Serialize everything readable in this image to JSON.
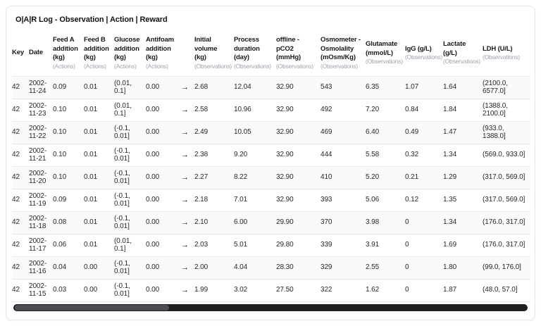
{
  "title": "O|A|R Log - Observation | Action | Reward",
  "colors": {
    "row_stripe": "#f9fafb",
    "table_border": "#e5e7eb",
    "header_text": "#18181b",
    "subheader_text": "#9ca3af",
    "body_text": "#27272a",
    "scrollbar_track": "#1f1f22",
    "scrollbar_thumb": "#4d4d52"
  },
  "table": {
    "arrow_glyph": "→",
    "columns": [
      {
        "label": "Key",
        "sub": ""
      },
      {
        "label": "Date",
        "sub": ""
      },
      {
        "label": "Feed A addition (kg)",
        "sub": "(Actions)"
      },
      {
        "label": "Feed B addition (kg)",
        "sub": "(Actions)"
      },
      {
        "label": "Glucose addition (kg)",
        "sub": "(Actions)"
      },
      {
        "label": "Antifoam addition (kg)",
        "sub": "(Actions)"
      },
      {
        "label": "",
        "sub": ""
      },
      {
        "label": "Initial volume (kg)",
        "sub": "(Observations)"
      },
      {
        "label": "Process duration (day)",
        "sub": "(Observations)"
      },
      {
        "label": "offline - pCO2 (mmHg)",
        "sub": "(Observations)"
      },
      {
        "label": "Osmometer - Osmolality (mOsm/Kg)",
        "sub": "(Observations)"
      },
      {
        "label": "Glutamate (mmol/L)",
        "sub": "(Observations)"
      },
      {
        "label": "IgG (g/L)",
        "sub": "(Observations)"
      },
      {
        "label": "Lactate (g/L)",
        "sub": "(Observations)"
      },
      {
        "label": "LDH (U/L)",
        "sub": "(Observations)"
      }
    ],
    "rows": [
      {
        "key": "42",
        "date": "2002-11-24",
        "feed_a": "0.09",
        "feed_b": "0.01",
        "glucose": "(0.01, 0.1]",
        "antifoam": "0.00",
        "initial_volume": "2.68",
        "process_duration": "12.04",
        "pco2": "32.90",
        "osmolality": "543",
        "glutamate": "6.35",
        "igg": "1.07",
        "lactate": "1.64",
        "ldh": "(2100.0, 6577.0]"
      },
      {
        "key": "42",
        "date": "2002-11-23",
        "feed_a": "0.10",
        "feed_b": "0.01",
        "glucose": "(0.01, 0.1]",
        "antifoam": "0.00",
        "initial_volume": "2.58",
        "process_duration": "10.96",
        "pco2": "32.90",
        "osmolality": "492",
        "glutamate": "7.20",
        "igg": "0.84",
        "lactate": "1.84",
        "ldh": "(1388.0, 2100.0]"
      },
      {
        "key": "42",
        "date": "2002-11-22",
        "feed_a": "0.10",
        "feed_b": "0.01",
        "glucose": "(-0.1, 0.01]",
        "antifoam": "0.00",
        "initial_volume": "2.49",
        "process_duration": "10.05",
        "pco2": "32.90",
        "osmolality": "469",
        "glutamate": "6.40",
        "igg": "0.49",
        "lactate": "1.47",
        "ldh": "(933.0, 1388.0]"
      },
      {
        "key": "42",
        "date": "2002-11-21",
        "feed_a": "0.10",
        "feed_b": "0.01",
        "glucose": "(-0.1, 0.01]",
        "antifoam": "0.00",
        "initial_volume": "2.38",
        "process_duration": "9.20",
        "pco2": "32.90",
        "osmolality": "444",
        "glutamate": "5.58",
        "igg": "0.32",
        "lactate": "1.34",
        "ldh": "(569.0, 933.0]"
      },
      {
        "key": "42",
        "date": "2002-11-20",
        "feed_a": "0.10",
        "feed_b": "0.01",
        "glucose": "(-0.1, 0.01]",
        "antifoam": "0.00",
        "initial_volume": "2.27",
        "process_duration": "8.22",
        "pco2": "32.90",
        "osmolality": "410",
        "glutamate": "5.20",
        "igg": "0.21",
        "lactate": "1.29",
        "ldh": "(317.0, 569.0]"
      },
      {
        "key": "42",
        "date": "2002-11-19",
        "feed_a": "0.09",
        "feed_b": "0.01",
        "glucose": "(-0.1, 0.01]",
        "antifoam": "0.00",
        "initial_volume": "2.18",
        "process_duration": "7.01",
        "pco2": "32.90",
        "osmolality": "393",
        "glutamate": "5.06",
        "igg": "0.12",
        "lactate": "1.35",
        "ldh": "(317.0, 569.0]"
      },
      {
        "key": "42",
        "date": "2002-11-18",
        "feed_a": "0.08",
        "feed_b": "0.01",
        "glucose": "(-0.1, 0.01]",
        "antifoam": "0.00",
        "initial_volume": "2.10",
        "process_duration": "6.00",
        "pco2": "29.90",
        "osmolality": "370",
        "glutamate": "3.98",
        "igg": "0",
        "lactate": "1.34",
        "ldh": "(176.0, 317.0]"
      },
      {
        "key": "42",
        "date": "2002-11-17",
        "feed_a": "0.06",
        "feed_b": "0.01",
        "glucose": "(0.01, 0.1]",
        "antifoam": "0.00",
        "initial_volume": "2.03",
        "process_duration": "5.01",
        "pco2": "29.80",
        "osmolality": "339",
        "glutamate": "3.91",
        "igg": "0",
        "lactate": "1.69",
        "ldh": "(176.0, 317.0]"
      },
      {
        "key": "42",
        "date": "2002-11-16",
        "feed_a": "0.04",
        "feed_b": "0.00",
        "glucose": "(-0.1, 0.01]",
        "antifoam": "0.00",
        "initial_volume": "2.00",
        "process_duration": "4.04",
        "pco2": "28.30",
        "osmolality": "329",
        "glutamate": "2.55",
        "igg": "0",
        "lactate": "1.80",
        "ldh": "(99.0, 176.0]"
      },
      {
        "key": "42",
        "date": "2002-11-15",
        "feed_a": "0.03",
        "feed_b": "0.00",
        "glucose": "(-0.1, 0.01]",
        "antifoam": "0.00",
        "initial_volume": "1.99",
        "process_duration": "3.02",
        "pco2": "27.50",
        "osmolality": "322",
        "glutamate": "1.62",
        "igg": "0",
        "lactate": "1.87",
        "ldh": "(48.0, 57.0]"
      }
    ]
  }
}
